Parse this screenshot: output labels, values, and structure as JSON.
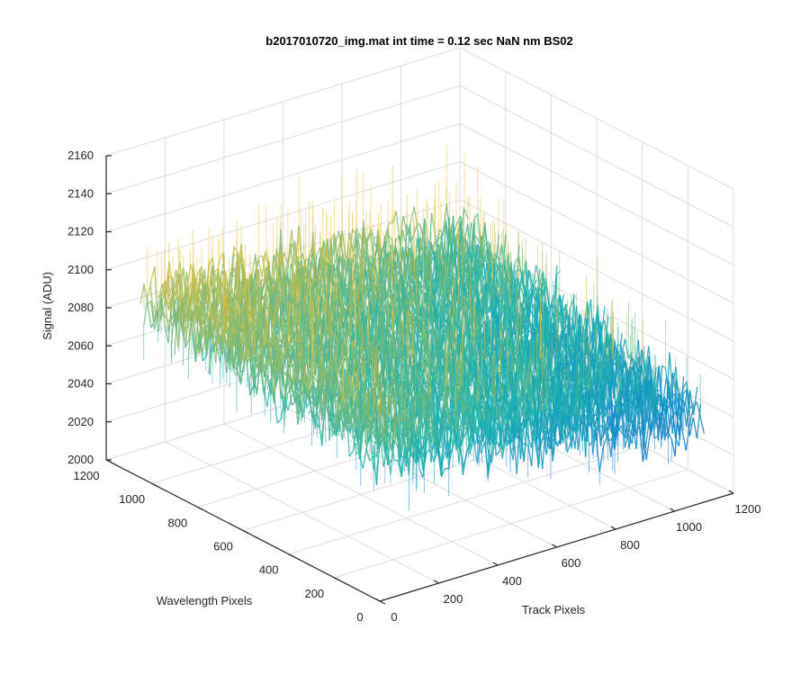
{
  "chart_data": {
    "type": "surface",
    "title": "b2017010720_img.mat int time = 0.12 sec  NaN nm BS02",
    "xlabel": "Track Pixels",
    "ylabel": "Wavelength Pixels",
    "zlabel": "Signal (ADU)",
    "xlim": [
      0,
      1200
    ],
    "ylim": [
      0,
      1200
    ],
    "zlim": [
      2000,
      2160
    ],
    "x_ticks": [
      "0",
      "200",
      "400",
      "600",
      "800",
      "1000",
      "1200"
    ],
    "y_ticks": [
      "0",
      "200",
      "400",
      "600",
      "800",
      "1000",
      "1200"
    ],
    "z_ticks": [
      "2000",
      "2020",
      "2040",
      "2060",
      "2080",
      "2100",
      "2120",
      "2140",
      "2160"
    ],
    "grid": true,
    "colormap": "parula",
    "surface_extent": {
      "x": [
        0,
        1100
      ],
      "y": [
        0,
        1050
      ]
    },
    "signal_profile": {
      "description_free_values": true,
      "corner_means": {
        "x0_yhigh": 2095,
        "x0_ylow": 2080,
        "xhigh_yhigh": 2075,
        "xhigh_ylow": 2045
      },
      "noise_amplitude": 30
    },
    "colors": {
      "low": "#0d6fd8",
      "mid": "#18b3b0",
      "high": "#f0c030"
    }
  }
}
